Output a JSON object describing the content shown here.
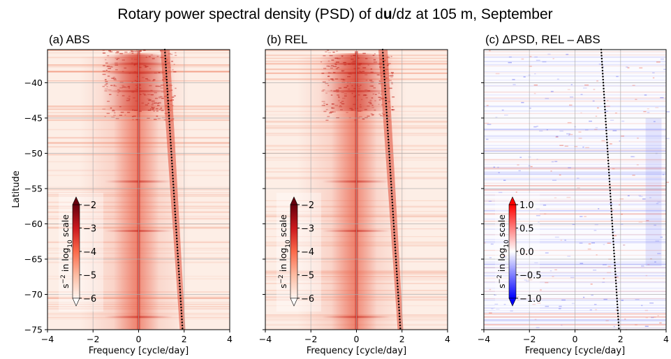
{
  "figure": {
    "title_pre": "Rotary power spectral density (PSD) of d",
    "title_bold": "u",
    "title_post": "/dz at 105 m, September"
  },
  "chart_data": [
    {
      "type": "heatmap",
      "panel_label": "(a) ABS",
      "xlabel": "Frequency [cycle/day]",
      "ylabel": "Latitude",
      "xlim": [
        -4,
        4
      ],
      "ylim": [
        -75,
        -35.3
      ],
      "xticks": [
        "−4",
        "−2",
        "0",
        "2",
        "4"
      ],
      "yticks": [
        "−40",
        "−45",
        "−50",
        "−55",
        "−60",
        "−65",
        "−70",
        "−75"
      ],
      "grid": true,
      "colormap": "Reds",
      "colorbar": {
        "ticks": [
          "−2",
          "−3",
          "−4",
          "−5",
          "−6"
        ],
        "label_pre": "s",
        "label_sup": "−2",
        "label_mid": " in log",
        "label_sub": "10",
        "label_post": " scale",
        "range": [
          -6,
          -2
        ],
        "extend": "both",
        "placement": "lower-left inset"
      },
      "inertial_line": {
        "lat_start": -35.3,
        "freq_start": 1.15,
        "lat_end": -75,
        "freq_end": 1.93
      }
    },
    {
      "type": "heatmap",
      "panel_label": "(b) REL",
      "xlabel": "Frequency [cycle/day]",
      "ylabel": "",
      "xlim": [
        -4,
        4
      ],
      "ylim": [
        -75,
        -35.3
      ],
      "xticks": [
        "−4",
        "−2",
        "0",
        "2",
        "4"
      ],
      "yticks": [],
      "grid": true,
      "colormap": "Reds",
      "colorbar": {
        "ticks": [
          "−2",
          "−3",
          "−4",
          "−5",
          "−6"
        ],
        "label_pre": "s",
        "label_sup": "−2",
        "label_mid": " in log",
        "label_sub": "10",
        "label_post": " scale",
        "range": [
          -6,
          -2
        ],
        "extend": "both",
        "placement": "lower-left inset"
      },
      "inertial_line": {
        "lat_start": -35.3,
        "freq_start": 1.15,
        "lat_end": -75,
        "freq_end": 1.93
      }
    },
    {
      "type": "heatmap",
      "panel_label": "(c) ΔPSD, REL – ABS",
      "xlabel": "Frequency [cycle/day]",
      "ylabel": "",
      "xlim": [
        -4,
        4
      ],
      "ylim": [
        -75,
        -35.3
      ],
      "xticks": [
        "−4",
        "−2",
        "0",
        "2",
        "4"
      ],
      "yticks": [],
      "grid": true,
      "colormap": "bwr",
      "colorbar": {
        "ticks": [
          "1.0",
          "0.5",
          "0.0",
          "−0.5",
          "−1.0"
        ],
        "label_pre": "s",
        "label_sup": "−2",
        "label_mid": " in log",
        "label_sub": "10",
        "label_post": " scale",
        "range": [
          -1,
          1
        ],
        "extend": "both",
        "placement": "lower-left inset"
      },
      "inertial_line": {
        "lat_start": -35.3,
        "freq_start": 1.15,
        "lat_end": -75,
        "freq_end": 1.93
      }
    }
  ]
}
